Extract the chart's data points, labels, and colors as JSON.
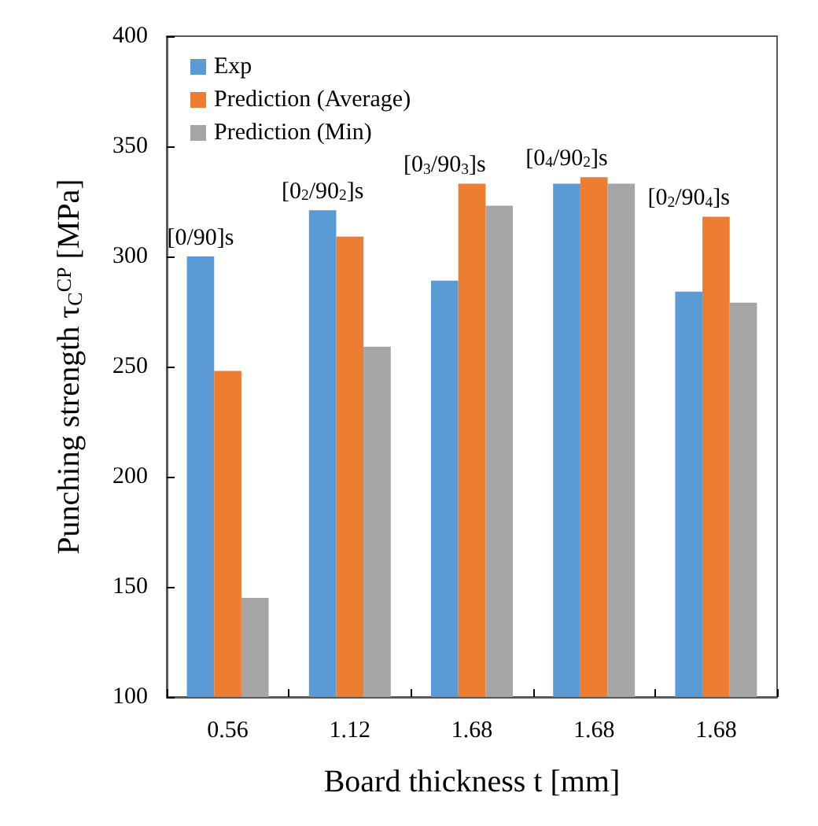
{
  "chart_data": {
    "type": "bar",
    "xlabel": "Board thickness t [mm]",
    "ylabel": "Punching strength τ$_{C}$$^{CP}$ [MPa]",
    "categories": [
      "0.56",
      "1.12",
      "1.68",
      "1.68",
      "1.68"
    ],
    "series": [
      {
        "name": "Exp",
        "color": "#5b9bd5",
        "values": [
          300,
          321,
          289,
          333,
          284
        ]
      },
      {
        "name": "Prediction (Average)",
        "color": "#ed7d31",
        "values": [
          248,
          309,
          333,
          336,
          318
        ]
      },
      {
        "name": "Prediction (Min)",
        "color": "#a5a5a5",
        "values": [
          145,
          259,
          323,
          333,
          279
        ]
      }
    ],
    "ylim": [
      100,
      400
    ],
    "yticks": [
      100,
      150,
      200,
      250,
      300,
      350,
      400
    ],
    "grid": false,
    "legend": "top left",
    "annotations": [
      "[0/90]s",
      "[0$_{2}$/90$_{2}$]s",
      "[0$_{3}$/90$_{3}$]s",
      "[0$_{4}$/90$_{2}$]s",
      "[0$_{2}$/90$_{4}$]s"
    ]
  }
}
